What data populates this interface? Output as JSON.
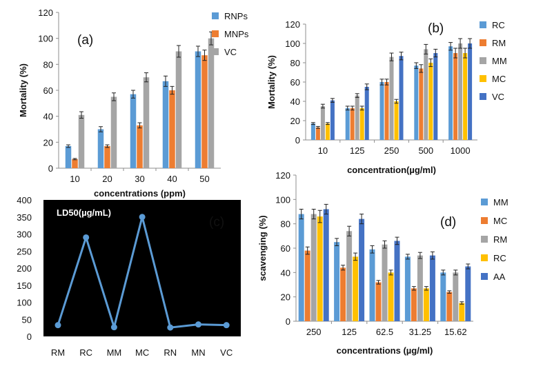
{
  "chart_data": [
    {
      "type": "bar",
      "panel_label": "(a)",
      "categories": [
        "10",
        "20",
        "30",
        "40",
        "50"
      ],
      "series": [
        {
          "name": "RNPs",
          "color": "#5b9bd5",
          "values": [
            17,
            30,
            57,
            67,
            90
          ],
          "errors": [
            1,
            2,
            3,
            4,
            4
          ]
        },
        {
          "name": "MNPs",
          "color": "#ed7d31",
          "values": [
            7,
            17,
            33,
            60,
            87
          ],
          "errors": [
            0.5,
            1,
            2,
            3,
            4
          ]
        },
        {
          "name": "VC",
          "color": "#a5a5a5",
          "values": [
            41,
            55,
            70,
            90,
            100
          ],
          "errors": [
            2.5,
            3,
            3.5,
            4.5,
            5
          ]
        }
      ],
      "xlabel": "concentrations (ppm)",
      "ylabel": "Mortality (%)",
      "ylim": [
        0,
        120
      ],
      "yticks": [
        "0",
        "20",
        "40",
        "60",
        "80",
        "100",
        "120"
      ],
      "grid": false,
      "legend_position": "top-right"
    },
    {
      "type": "bar",
      "panel_label": "(b)",
      "categories": [
        "10",
        "125",
        "250",
        "500",
        "1000"
      ],
      "series": [
        {
          "name": "RC",
          "color": "#5b9bd5",
          "values": [
            17,
            33,
            60,
            77,
            97
          ],
          "errors": [
            1,
            2,
            3,
            3,
            4
          ]
        },
        {
          "name": "RM",
          "color": "#ed7d31",
          "values": [
            13,
            33,
            60,
            74,
            90
          ],
          "errors": [
            1,
            2,
            3,
            4,
            5
          ]
        },
        {
          "name": "MM",
          "color": "#a5a5a5",
          "values": [
            35,
            46,
            86,
            94,
            100
          ],
          "errors": [
            2,
            2,
            4,
            5,
            5
          ]
        },
        {
          "name": "MC",
          "color": "#ffc000",
          "values": [
            17,
            33,
            40,
            80,
            90
          ],
          "errors": [
            1,
            2,
            2,
            4,
            5
          ]
        },
        {
          "name": "VC",
          "color": "#4472c4",
          "values": [
            41,
            55,
            87,
            90,
            100
          ],
          "errors": [
            2,
            3,
            4,
            4,
            5
          ]
        }
      ],
      "xlabel": "concentration(µg/ml)",
      "ylabel": "Mortality (%)",
      "ylim": [
        0,
        120
      ],
      "yticks": [
        "0",
        "20",
        "40",
        "60",
        "80",
        "100",
        "120"
      ],
      "grid": false,
      "legend_position": "right"
    },
    {
      "type": "line",
      "panel_label": "(c)",
      "title": "LD50(µg/mL)",
      "categories": [
        "RM",
        "RC",
        "MM",
        "MC",
        "RN",
        "MN",
        "VC"
      ],
      "series": [
        {
          "name": "LD50(µg/mL)",
          "color": "#5b9bd5",
          "values": [
            33,
            290,
            27,
            350,
            26,
            35,
            33
          ]
        }
      ],
      "ylim": [
        0,
        400
      ],
      "yticks": [
        "0",
        "50",
        "100",
        "150",
        "200",
        "250",
        "300",
        "350",
        "400"
      ],
      "background": "#000000",
      "grid": false
    },
    {
      "type": "bar",
      "panel_label": "(d)",
      "categories": [
        "250",
        "125",
        "62.5",
        "31.25",
        "15.62"
      ],
      "series": [
        {
          "name": "MM",
          "color": "#5b9bd5",
          "values": [
            88,
            65,
            59,
            53,
            40
          ],
          "errors": [
            4,
            3,
            3,
            2,
            2
          ]
        },
        {
          "name": "MC",
          "color": "#ed7d31",
          "values": [
            58,
            44,
            32,
            27,
            24
          ],
          "errors": [
            3,
            2,
            1.5,
            1.5,
            1
          ]
        },
        {
          "name": "RM",
          "color": "#a5a5a5",
          "values": [
            88,
            74,
            63,
            54,
            40
          ],
          "errors": [
            4,
            4,
            3,
            2.5,
            2
          ]
        },
        {
          "name": "RC",
          "color": "#ffc000",
          "values": [
            86,
            53,
            40,
            27,
            15
          ],
          "errors": [
            5,
            3,
            2,
            1.5,
            1
          ]
        },
        {
          "name": "AA",
          "color": "#4472c4",
          "values": [
            92,
            84,
            66,
            54,
            45
          ],
          "errors": [
            4,
            4,
            3,
            3,
            2
          ]
        }
      ],
      "xlabel": "concentrations (µg/ml)",
      "ylabel": "scavenging (%)",
      "ylim": [
        0,
        120
      ],
      "yticks": [
        "0",
        "20",
        "40",
        "60",
        "80",
        "100",
        "120"
      ],
      "grid": false,
      "legend_position": "right"
    }
  ]
}
